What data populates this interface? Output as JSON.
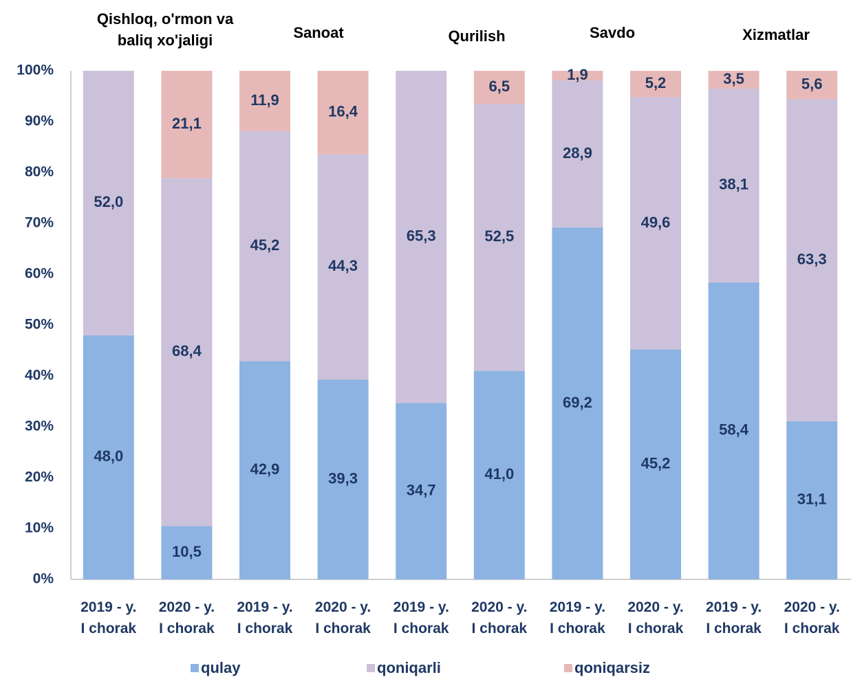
{
  "chart_data": {
    "type": "stacked_bar_100",
    "categories": [
      "2019 - y.\nI chorak",
      "2020 - y.\nI chorak",
      "2019 - y.\nI chorak",
      "2020 - y.\nI chorak",
      "2019 - y.\nI chorak",
      "2020 - y.\nI chorak",
      "2019 - y.\nI chorak",
      "2020 - y.\nI chorak",
      "2019 - y.\nI chorak",
      "2020 - y.\nI chorak"
    ],
    "annotations": [
      "Qishloq, o'rmon va\nbaliq xo'jaligi",
      "Sanoat",
      "Qurilish",
      "Savdo",
      "Xizmatlar"
    ],
    "series": [
      {
        "name": "qulay",
        "color": "#8db3e2",
        "values": [
          48.0,
          10.5,
          42.9,
          39.3,
          34.7,
          41.0,
          69.2,
          45.2,
          58.4,
          31.1
        ],
        "value_labels": [
          "48,0",
          "10,5",
          "42,9",
          "39,3",
          "34,7",
          "41,0",
          "69,2",
          "45,2",
          "58,4",
          "31,1"
        ]
      },
      {
        "name": "qoniqarli",
        "color": "#ccc1da",
        "values": [
          52.0,
          68.4,
          45.2,
          44.3,
          65.3,
          52.5,
          28.9,
          49.6,
          38.1,
          63.3
        ],
        "value_labels": [
          "52,0",
          "68,4",
          "45,2",
          "44,3",
          "65,3",
          "52,5",
          "28,9",
          "49,6",
          "38,1",
          "63,3"
        ]
      },
      {
        "name": "qoniqarsiz",
        "color": "#e6b9b8",
        "values": [
          null,
          21.1,
          11.9,
          16.4,
          null,
          6.5,
          1.9,
          5.2,
          3.5,
          5.6
        ],
        "value_labels": [
          null,
          "21,1",
          "11,9",
          "16,4",
          null,
          "6,5",
          "1,9",
          "5,2",
          "3,5",
          "5,6"
        ]
      }
    ],
    "ylim": [
      0,
      100
    ],
    "yticks": [
      {
        "value": 0,
        "label": "0%"
      },
      {
        "value": 10,
        "label": "10%"
      },
      {
        "value": 20,
        "label": "20%"
      },
      {
        "value": 30,
        "label": "30%"
      },
      {
        "value": 40,
        "label": "40%"
      },
      {
        "value": 50,
        "label": "50%"
      },
      {
        "value": 60,
        "label": "60%"
      },
      {
        "value": 70,
        "label": "70%"
      },
      {
        "value": 80,
        "label": "80%"
      },
      {
        "value": 90,
        "label": "90%"
      },
      {
        "value": 100,
        "label": "100%"
      }
    ],
    "grid": false,
    "legend": "bottom"
  }
}
